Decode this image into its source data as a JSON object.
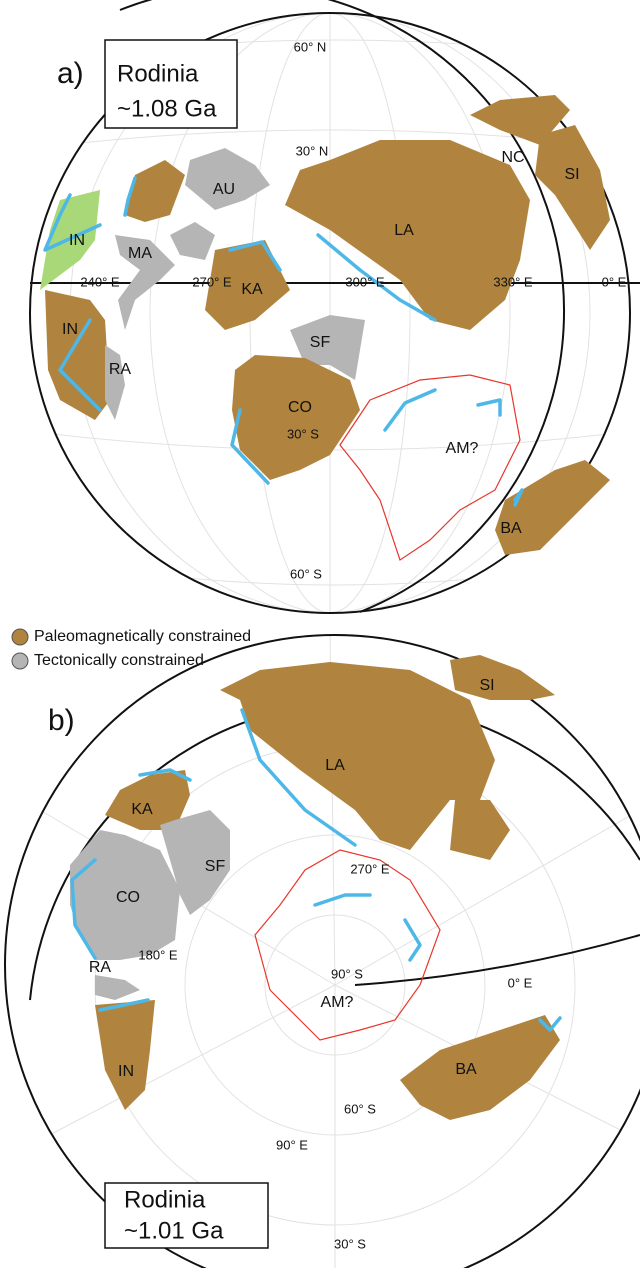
{
  "panels": [
    {
      "label": "a)",
      "title": [
        "Rodinia",
        "~1.08 Ga"
      ],
      "grid_labels": [
        "60° N",
        "30° N",
        "240° E",
        "270° E",
        "300° E",
        "330° E",
        "0° E",
        "30° S",
        "60° S"
      ],
      "blocks": [
        "NC",
        "SI",
        "AU",
        "LA",
        "IN",
        "MA",
        "KA",
        "IN",
        "RA",
        "SF",
        "CO",
        "AM?",
        "BA"
      ]
    },
    {
      "label": "b)",
      "title": [
        "Rodinia",
        "~1.01 Ga"
      ],
      "grid_labels": [
        "270° E",
        "180° E",
        "90° S",
        "0° E",
        "60° S",
        "90° E",
        "30° S"
      ],
      "blocks": [
        "SI",
        "LA",
        "KA",
        "SF",
        "CO",
        "RA",
        "AM?",
        "IN",
        "BA"
      ]
    }
  ],
  "legend": [
    "Paleomagnetically constrained",
    "Tectonically constrained"
  ]
}
